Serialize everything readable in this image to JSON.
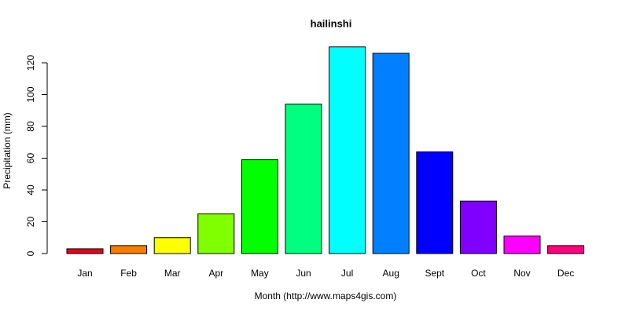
{
  "chart_data": {
    "type": "bar",
    "title": "hailinshi",
    "x_label": "Month (http://www.maps4gis.com)",
    "y_label": "Precipitation (mm)",
    "categories": [
      "Jan",
      "Feb",
      "Mar",
      "Apr",
      "May",
      "Jun",
      "Jul",
      "Aug",
      "Sept",
      "Oct",
      "Nov",
      "Dec"
    ],
    "values": [
      3,
      5,
      10,
      25,
      59,
      94,
      130,
      126,
      64,
      33,
      11,
      5
    ],
    "colors": [
      "#e6001a",
      "#f47f00",
      "#ffff00",
      "#80ff00",
      "#00ff00",
      "#00ff80",
      "#00ffff",
      "#0080ff",
      "#0000ff",
      "#8000ff",
      "#ff00ff",
      "#ff0080"
    ],
    "ylim": [
      0,
      120
    ],
    "yticks": [
      0,
      20,
      40,
      60,
      80,
      100,
      120
    ]
  }
}
